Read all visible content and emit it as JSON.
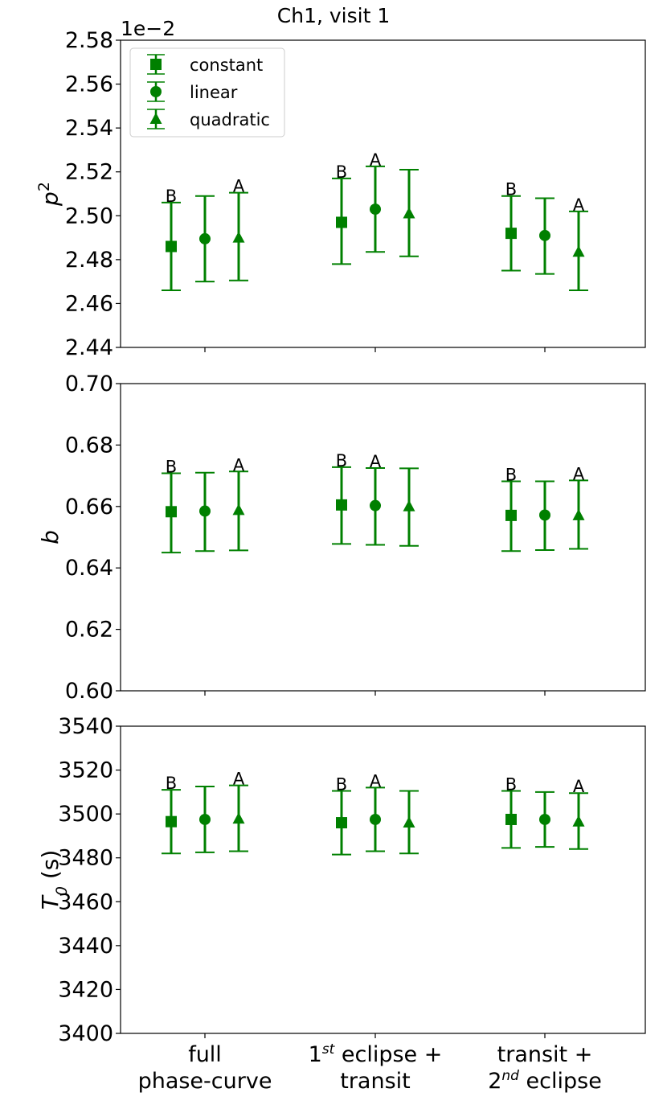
{
  "chart_data": [
    {
      "type": "scatter",
      "panel": "p2",
      "title": "Ch1, visit 1",
      "ylabel_main": "p",
      "ylabel_sup": "2",
      "offset_label": "1e−2",
      "ylim": [
        2.44,
        2.58
      ],
      "yticks": [
        "2.44",
        "2.46",
        "2.48",
        "2.50",
        "2.52",
        "2.54",
        "2.56",
        "2.58"
      ],
      "yticks_values": [
        2.44,
        2.46,
        2.48,
        2.5,
        2.52,
        2.54,
        2.56,
        2.58
      ],
      "categories": [
        "full phase-curve",
        "1st eclipse + transit",
        "transit + 2nd eclipse"
      ],
      "series": [
        {
          "name": "constant",
          "marker": "square",
          "values": [
            2.486,
            2.497,
            2.492
          ],
          "err_low": [
            2.466,
            2.478,
            2.475
          ],
          "err_high": [
            2.506,
            2.517,
            2.509
          ],
          "letters": [
            "B",
            "B",
            "B"
          ]
        },
        {
          "name": "linear",
          "marker": "circle",
          "values": [
            2.4895,
            2.503,
            2.491
          ],
          "err_low": [
            2.47,
            2.4835,
            2.4735
          ],
          "err_high": [
            2.509,
            2.5225,
            2.508
          ],
          "letters": [
            "",
            "A",
            ""
          ]
        },
        {
          "name": "quadratic",
          "marker": "triangle",
          "values": [
            2.49,
            2.501,
            2.4835
          ],
          "err_low": [
            2.4705,
            2.4815,
            2.466
          ],
          "err_high": [
            2.5105,
            2.521,
            2.502
          ],
          "letters": [
            "A",
            "",
            "A"
          ]
        }
      ],
      "legend": "upper-left",
      "grid": false
    },
    {
      "type": "scatter",
      "panel": "b",
      "ylabel_main": "b",
      "ylim": [
        0.6,
        0.7
      ],
      "yticks": [
        "0.60",
        "0.62",
        "0.64",
        "0.66",
        "0.68",
        "0.70"
      ],
      "yticks_values": [
        0.6,
        0.62,
        0.64,
        0.66,
        0.68,
        0.7
      ],
      "categories": [
        "full phase-curve",
        "1st eclipse + transit",
        "transit + 2nd eclipse"
      ],
      "series": [
        {
          "name": "constant",
          "marker": "square",
          "values": [
            0.6583,
            0.6605,
            0.6571
          ],
          "err_low": [
            0.645,
            0.6478,
            0.6455
          ],
          "err_high": [
            0.6708,
            0.6728,
            0.6682
          ],
          "letters": [
            "B",
            "B",
            "B"
          ]
        },
        {
          "name": "linear",
          "marker": "circle",
          "values": [
            0.6585,
            0.6603,
            0.6572
          ],
          "err_low": [
            0.6455,
            0.6475,
            0.6458
          ],
          "err_high": [
            0.671,
            0.6725,
            0.6682
          ],
          "letters": [
            "",
            "A",
            ""
          ]
        },
        {
          "name": "quadratic",
          "marker": "triangle",
          "values": [
            0.6588,
            0.66,
            0.6571
          ],
          "err_low": [
            0.6457,
            0.6472,
            0.6462
          ],
          "err_high": [
            0.6714,
            0.6724,
            0.6685
          ],
          "letters": [
            "A",
            "",
            "A"
          ]
        }
      ],
      "grid": false
    },
    {
      "type": "scatter",
      "panel": "T0",
      "ylabel_main": "T",
      "ylabel_sub": "0",
      "ylabel_unit": " (s)",
      "ylim": [
        3400,
        3540
      ],
      "yticks": [
        "3400",
        "3420",
        "3440",
        "3460",
        "3480",
        "3500",
        "3520",
        "3540"
      ],
      "yticks_values": [
        3400,
        3420,
        3440,
        3460,
        3480,
        3500,
        3520,
        3540
      ],
      "categories": [
        "full phase-curve",
        "1st eclipse + transit",
        "transit + 2nd eclipse"
      ],
      "category_labels": [
        {
          "line1": "full",
          "line2": "phase-curve"
        },
        {
          "line1_pre": "1",
          "line1_sup": "st",
          "line1_post": " eclipse +",
          "line2": "transit"
        },
        {
          "line1": "transit +",
          "line2_pre": "2",
          "line2_sup": "nd",
          "line2_post": " eclipse"
        }
      ],
      "series": [
        {
          "name": "constant",
          "marker": "square",
          "values": [
            3496.5,
            3496.0,
            3497.5
          ],
          "err_low": [
            3482,
            3481.5,
            3484.5
          ],
          "err_high": [
            3511,
            3510.5,
            3510.5
          ],
          "letters": [
            "B",
            "B",
            "B"
          ]
        },
        {
          "name": "linear",
          "marker": "circle",
          "values": [
            3497.5,
            3497.5,
            3497.5
          ],
          "err_low": [
            3482.5,
            3483,
            3485
          ],
          "err_high": [
            3512.5,
            3512,
            3510
          ],
          "letters": [
            "",
            "A",
            ""
          ]
        },
        {
          "name": "quadratic",
          "marker": "triangle",
          "values": [
            3497.8,
            3496.0,
            3496.5
          ],
          "err_low": [
            3483,
            3482,
            3484
          ],
          "err_high": [
            3513,
            3510.5,
            3509.5
          ],
          "letters": [
            "A",
            "",
            "A"
          ]
        }
      ],
      "grid": false
    }
  ],
  "style": {
    "series_color": "#008000",
    "axis_color": "#000000"
  }
}
